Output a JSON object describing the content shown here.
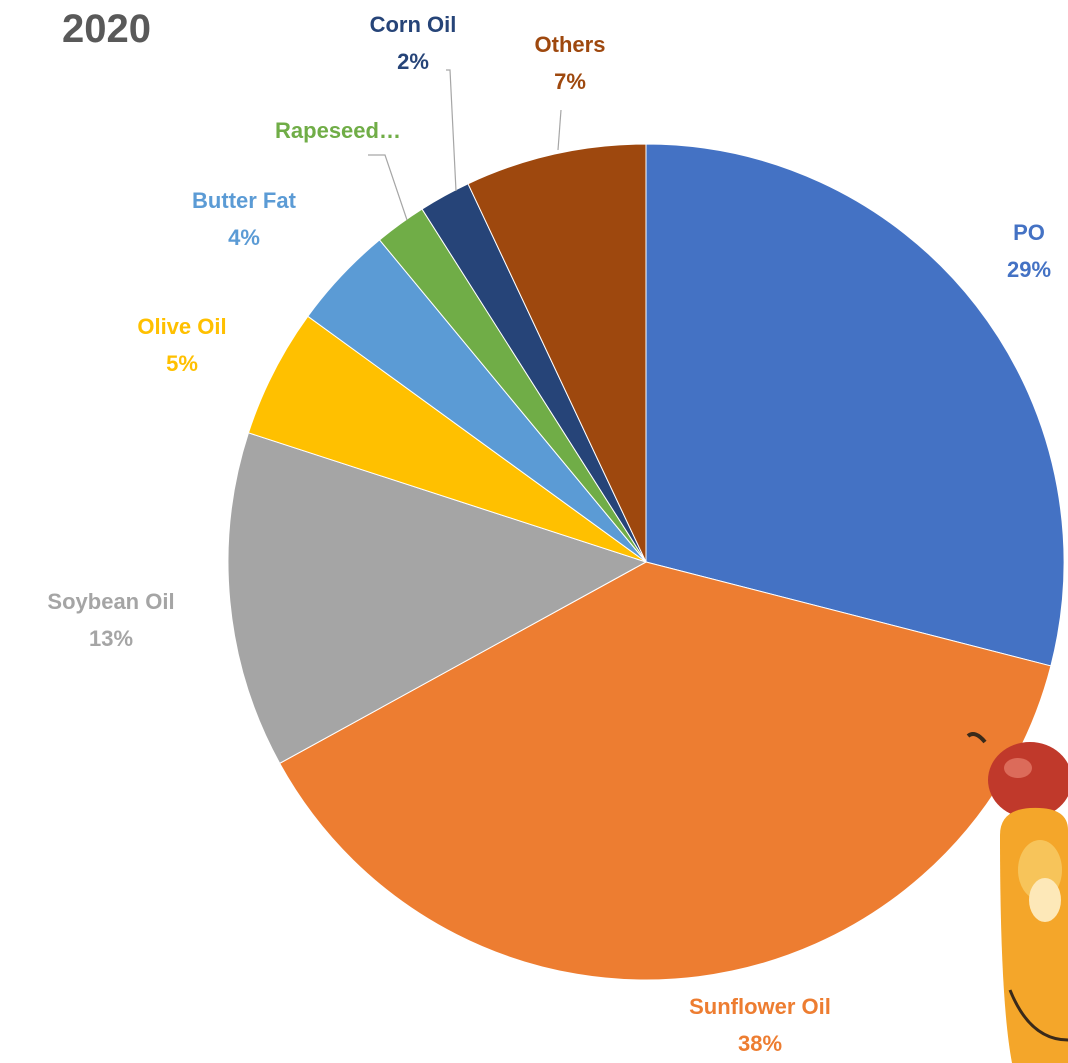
{
  "chart_data": {
    "type": "pie",
    "title": "2020",
    "start_angle_deg": 0,
    "direction": "clockwise",
    "slices": [
      {
        "label": "PO",
        "value": 29,
        "value_label": "29%",
        "color": "#4472C4"
      },
      {
        "label": "Sunflower Oil",
        "value": 38,
        "value_label": "38%",
        "color": "#ED7D31"
      },
      {
        "label": "Soybean Oil",
        "value": 13,
        "value_label": "13%",
        "color": "#A5A5A5"
      },
      {
        "label": "Olive Oil",
        "value": 5,
        "value_label": "5%",
        "color": "#FFC000"
      },
      {
        "label": "Butter Fat",
        "value": 4,
        "value_label": "4%",
        "color": "#5B9BD5"
      },
      {
        "label": "Rapeseed…",
        "value": 2,
        "value_label": "",
        "color": "#70AD47"
      },
      {
        "label": "Corn Oil",
        "value": 2,
        "value_label": "2%",
        "color": "#264478"
      },
      {
        "label": "Others",
        "value": 7,
        "value_label": "7%",
        "color": "#9E480E"
      }
    ]
  }
}
